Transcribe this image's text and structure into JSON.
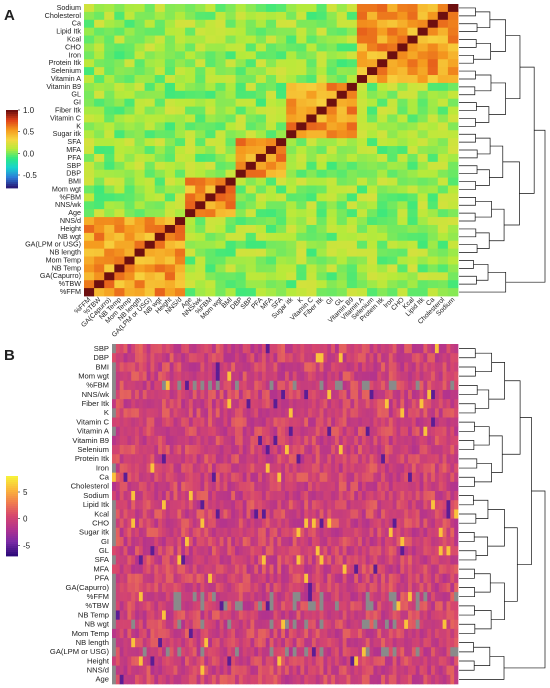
{
  "chart_data": [
    {
      "type": "heatmap",
      "panel_label": "A",
      "matrix": "correlation",
      "rows_top_to_bottom": [
        "Sodium",
        "Cholesterol",
        "Ca",
        "Lipid Itk",
        "Kcal",
        "CHO",
        "Iron",
        "Protein Itk",
        "Selenium",
        "Vitamin A",
        "Vitamin B9",
        "GL",
        "GI",
        "Fiber Itk",
        "Vitamin C",
        "K",
        "Sugar itk",
        "SFA",
        "MFA",
        "PFA",
        "SBP",
        "DBP",
        "BMI",
        "Mom wgt",
        "%FBM",
        "NNS/wk",
        "Age",
        "NNS/d",
        "Height",
        "NB wgt",
        "GA(LPM or USG)",
        "NB length",
        "Mom Temp",
        "NB Temp",
        "GA(Capurro)",
        "%TBW",
        "%FFM"
      ],
      "columns_left_to_right": [
        "%FFM",
        "%TBW",
        "GA(Capurro)",
        "NB Temp",
        "Mom Temp",
        "NB length",
        "GA(LPM or USG)",
        "NB wgt",
        "Height",
        "NNS/d",
        "Age",
        "NNS/wk",
        "%FBM",
        "Mom wgt",
        "BMI",
        "DBP",
        "SBP",
        "PFA",
        "MFA",
        "SFA",
        "Sugar itk",
        "K",
        "Vitamin C",
        "Fiber Itk",
        "GI",
        "GL",
        "Vitamin B9",
        "Vitamin A",
        "Selenium",
        "Protein Itk",
        "Iron",
        "CHO",
        "Kcal",
        "Lipid Itk",
        "Ca",
        "Cholesterol",
        "Sodium"
      ],
      "legend_ticks": [
        "1.0",
        "0.5",
        "0.0",
        "-0.5"
      ],
      "color_range": [
        -0.8,
        1.0
      ],
      "diagonal_value": 1.0,
      "dendrogram": "right",
      "legend_placement": "left"
    },
    {
      "type": "heatmap",
      "panel_label": "B",
      "rows_top_to_bottom": [
        "SBP",
        "DBP",
        "BMI",
        "Mom wgt",
        "%FBM",
        "NNS/wk",
        "Fiber Itk",
        "K",
        "Vitamin C",
        "Vitamin A",
        "Vitamin B9",
        "Selenium",
        "Protein Itk",
        "Iron",
        "Ca",
        "Cholesterol",
        "Sodium",
        "Lipid Itk",
        "Kcal",
        "CHO",
        "Sugar itk",
        "GI",
        "GL",
        "SFA",
        "MFA",
        "PFA",
        "GA(Capurro)",
        "%FFM",
        "%TBW",
        "NB Temp",
        "NB wgt",
        "Mom Temp",
        "NB length",
        "GA(LPM or USG)",
        "Height",
        "NNS/d",
        "Age"
      ],
      "n_columns": 90,
      "legend_ticks": [
        "5",
        "0",
        "-5"
      ],
      "color_range": [
        -7,
        8
      ],
      "missing_color": "#8a8a8a",
      "dendrogram": "right",
      "legend_placement": "left"
    }
  ],
  "colors": {
    "spectral_scale": [
      "#2a1c78",
      "#2c7bd8",
      "#17d3d0",
      "#2ee884",
      "#b8ea3a",
      "#f7d640",
      "#f59a1e",
      "#e0431a",
      "#6e0f0f"
    ],
    "plasma_scale": [
      "#2e0a7a",
      "#7a2aa6",
      "#b2338e",
      "#d6466e",
      "#f07b4f",
      "#fbb63b",
      "#f7f03a"
    ]
  }
}
